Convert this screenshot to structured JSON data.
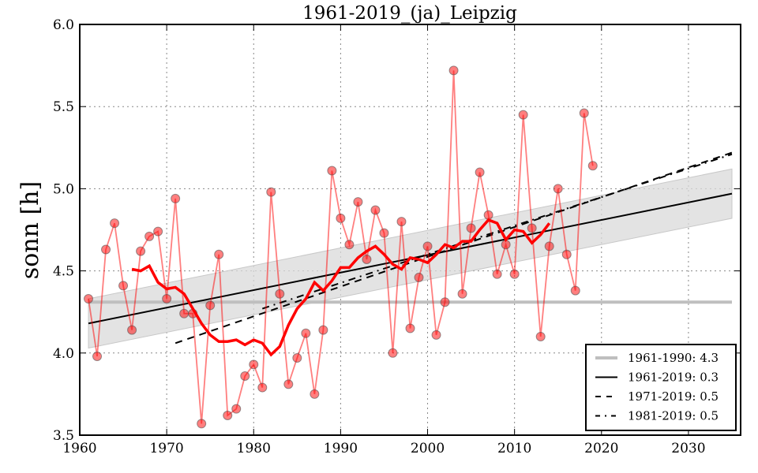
{
  "chart_data": {
    "type": "line",
    "title": "1961-2019_(ja)_Leipzig",
    "xlabel": "",
    "ylabel": "sonn [h]",
    "xlim": [
      1960,
      2036
    ],
    "ylim": [
      3.5,
      6.0
    ],
    "xticks": [
      1960,
      1970,
      1980,
      1990,
      2000,
      2010,
      2020,
      2030
    ],
    "xtick_labels": [
      "1960",
      "1970",
      "1980",
      "1990",
      "2000",
      "2010",
      "2020",
      "2030"
    ],
    "yticks": [
      3.5,
      4.0,
      4.5,
      5.0,
      5.5,
      6.0
    ],
    "ytick_labels": [
      "3.5",
      "4.0",
      "4.5",
      "5.0",
      "5.5",
      "6.0"
    ],
    "grid": true,
    "legend_position": "bottom-right",
    "colors": {
      "annual": "#ff0000",
      "moving_average": "#ff0000",
      "reference_mean": "#bfbfbf",
      "trend": "#000000",
      "confidence_band": "#d9d9d9"
    },
    "annual_series": {
      "name": "annual",
      "x": [
        1961,
        1962,
        1963,
        1964,
        1965,
        1966,
        1967,
        1968,
        1969,
        1970,
        1971,
        1972,
        1973,
        1974,
        1975,
        1976,
        1977,
        1978,
        1979,
        1980,
        1981,
        1982,
        1983,
        1984,
        1985,
        1986,
        1987,
        1988,
        1989,
        1990,
        1991,
        1992,
        1993,
        1994,
        1995,
        1996,
        1997,
        1998,
        1999,
        2000,
        2001,
        2002,
        2003,
        2004,
        2005,
        2006,
        2007,
        2008,
        2009,
        2010,
        2011,
        2012,
        2013,
        2014,
        2015,
        2016,
        2017,
        2018,
        2019
      ],
      "y": [
        4.33,
        3.98,
        4.63,
        4.79,
        4.41,
        4.14,
        4.62,
        4.71,
        4.74,
        4.33,
        4.94,
        4.24,
        4.24,
        3.57,
        4.29,
        4.6,
        3.62,
        3.66,
        3.86,
        3.93,
        3.79,
        4.98,
        4.36,
        3.81,
        3.97,
        4.12,
        3.75,
        4.14,
        5.11,
        4.82,
        4.66,
        4.92,
        4.57,
        4.87,
        4.73,
        4.0,
        4.8,
        4.15,
        4.46,
        4.65,
        4.11,
        4.31,
        5.72,
        4.36,
        4.76,
        5.1,
        4.84,
        4.48,
        4.66,
        4.48,
        5.45,
        4.76,
        4.1,
        4.65,
        5.0,
        4.6,
        4.38,
        5.46,
        5.14
      ]
    },
    "moving_average": {
      "name": "moving average",
      "x": [
        1966,
        1967,
        1968,
        1969,
        1970,
        1971,
        1972,
        1973,
        1974,
        1975,
        1976,
        1977,
        1978,
        1979,
        1980,
        1981,
        1982,
        1983,
        1984,
        1985,
        1986,
        1987,
        1988,
        1989,
        1990,
        1991,
        1992,
        1993,
        1994,
        1995,
        1996,
        1997,
        1998,
        1999,
        2000,
        2001,
        2002,
        2003,
        2004,
        2005,
        2006,
        2007,
        2008,
        2009,
        2010,
        2011,
        2012,
        2013,
        2014
      ],
      "y": [
        4.51,
        4.5,
        4.53,
        4.43,
        4.39,
        4.4,
        4.36,
        4.27,
        4.18,
        4.11,
        4.07,
        4.07,
        4.08,
        4.05,
        4.08,
        4.06,
        3.99,
        4.04,
        4.17,
        4.27,
        4.33,
        4.43,
        4.38,
        4.44,
        4.52,
        4.52,
        4.58,
        4.62,
        4.65,
        4.6,
        4.54,
        4.51,
        4.58,
        4.57,
        4.55,
        4.6,
        4.66,
        4.64,
        4.68,
        4.68,
        4.75,
        4.81,
        4.79,
        4.69,
        4.75,
        4.74,
        4.67,
        4.72,
        4.79
      ]
    },
    "reference_mean": {
      "x": [
        1961,
        2035
      ],
      "y": [
        4.31,
        4.31
      ]
    },
    "trends": [
      {
        "name": "1961-2019",
        "x": [
          1961,
          2035
        ],
        "y": [
          4.18,
          4.97
        ],
        "style": "solid"
      },
      {
        "name": "1971-2019",
        "x": [
          1971,
          2035
        ],
        "y": [
          4.06,
          5.22
        ],
        "style": "dashed"
      },
      {
        "name": "1981-2019",
        "x": [
          1981,
          2035
        ],
        "y": [
          4.27,
          5.21
        ],
        "style": "dashdot"
      }
    ],
    "confidence_band": {
      "x": [
        1961,
        2035
      ],
      "upper": [
        4.33,
        5.12
      ],
      "lower": [
        4.03,
        4.82
      ]
    },
    "legend": [
      {
        "label": "1961-1990: 4.3",
        "style": "reference"
      },
      {
        "label": "1961-2019: 0.3",
        "style": "solid"
      },
      {
        "label": "1971-2019: 0.5",
        "style": "dashed"
      },
      {
        "label": "1981-2019: 0.5",
        "style": "dashdot"
      }
    ]
  }
}
